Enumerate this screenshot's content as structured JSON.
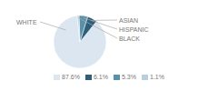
{
  "chart_data": {
    "type": "pie",
    "categories": [
      "WHITE",
      "ASIAN",
      "HISPANIC",
      "BLACK"
    ],
    "values": [
      87.6,
      6.1,
      5.3,
      1.1
    ],
    "value_labels": [
      "87.6%",
      "6.1%",
      "5.3%",
      "1.1%"
    ],
    "colors": [
      "#dce6f1",
      "#2e5f7a",
      "#5b90aa",
      "#b8cfe0"
    ],
    "legend": "bottom"
  }
}
